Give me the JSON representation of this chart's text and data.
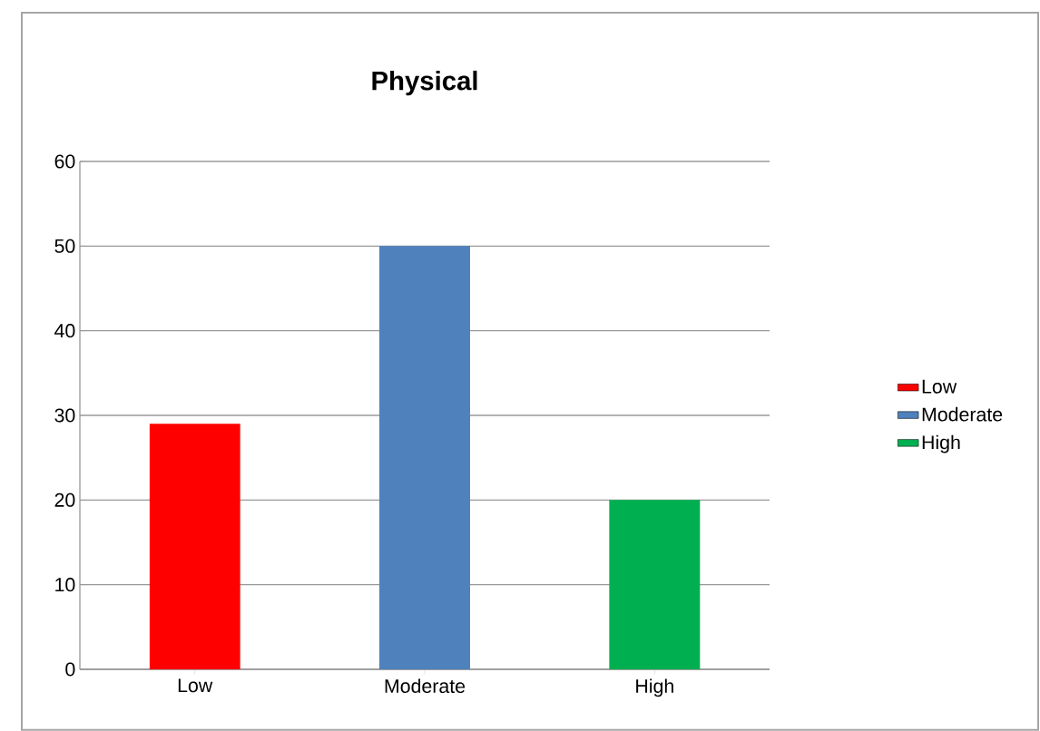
{
  "chart_data": {
    "type": "bar",
    "title": "Physical",
    "categories": [
      "Low",
      "Moderate",
      "High"
    ],
    "series": [
      {
        "name": "Low",
        "color": "#ff0000",
        "values": [
          29,
          null,
          null
        ]
      },
      {
        "name": "Moderate",
        "color": "#4f81bd",
        "values": [
          null,
          50,
          null
        ]
      },
      {
        "name": "High",
        "color": "#00b050",
        "values": [
          null,
          null,
          20
        ]
      }
    ],
    "ylim": [
      0,
      60
    ],
    "yticks": [
      0,
      10,
      20,
      30,
      40,
      50,
      60
    ],
    "grid": "y",
    "legend": "right"
  }
}
